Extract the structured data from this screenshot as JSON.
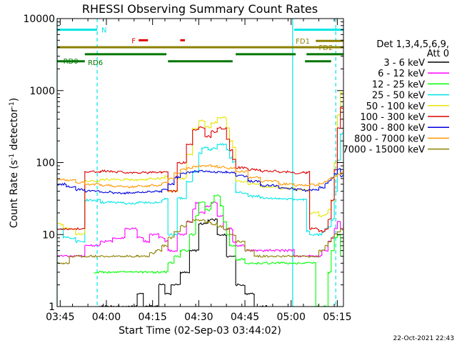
{
  "chart_data": {
    "type": "line",
    "title": "RHESSI Observing Summary Count Rates",
    "xlabel": "Start Time (02-Sep-03 03:44:02)",
    "ylabel": "Count Rate (s",
    "ylabel_sup1": "-1",
    "ylabel_mid": " detector",
    "ylabel_sup2": "-1",
    "ylabel_end": ")",
    "yscale": "log",
    "ylim": [
      1,
      10000
    ],
    "xlim_minutes": [
      0,
      93
    ],
    "x_ticks": [
      {
        "label": "03:45",
        "minute": 1
      },
      {
        "label": "04:00",
        "minute": 16
      },
      {
        "label": "04:15",
        "minute": 31
      },
      {
        "label": "04:30",
        "minute": 46
      },
      {
        "label": "04:45",
        "minute": 61
      },
      {
        "label": "05:00",
        "minute": 76
      },
      {
        "label": "05:15",
        "minute": 91
      }
    ],
    "y_ticks": [
      {
        "label": "1",
        "value": 1
      },
      {
        "label": "10",
        "value": 10
      },
      {
        "label": "100",
        "value": 100
      },
      {
        "label": "1000",
        "value": 1000
      },
      {
        "label": "10000",
        "value": 10000
      }
    ],
    "legend_header": [
      "Det 1,3,4,5,6,9,",
      "Att 0"
    ],
    "footer_date": "22-Oct-2021 22:43",
    "series": [
      {
        "name": "3 - 6 keV",
        "color": "#000000",
        "x": [
          13,
          24,
          26,
          28,
          33,
          35,
          37,
          40,
          43,
          46,
          49,
          52,
          55,
          58,
          61,
          64,
          68
        ],
        "values": [
          1,
          1,
          1.5,
          1,
          2,
          1.5,
          2,
          3,
          6,
          14,
          16,
          10,
          5,
          2,
          1.5,
          1,
          1
        ]
      },
      {
        "name": "6 - 12 keV",
        "color": "#ff00ff",
        "x": [
          0,
          8,
          9,
          14,
          18,
          22,
          26,
          28,
          30,
          33,
          35,
          36,
          39,
          42,
          44,
          45,
          46,
          48,
          50,
          52,
          54,
          57,
          58,
          61,
          65,
          70,
          76,
          77,
          82,
          85,
          86,
          88,
          89,
          90,
          91,
          92,
          93
        ],
        "values": [
          5,
          5,
          7,
          8,
          9,
          12,
          9,
          8,
          10,
          9,
          8,
          6,
          10,
          15,
          22,
          28,
          20,
          25,
          28,
          18,
          12,
          8,
          7,
          6,
          6,
          6,
          6,
          5,
          5,
          5,
          6,
          8,
          9,
          12,
          15,
          12,
          14
        ]
      },
      {
        "name": "12 - 25 keV",
        "color": "#00ff00",
        "x": [
          12,
          20,
          24,
          35,
          36,
          38,
          40,
          43,
          45,
          46,
          48,
          50,
          51,
          53,
          54,
          55,
          56,
          58,
          61,
          65,
          72,
          80,
          83,
          84,
          86,
          88,
          89,
          90,
          91,
          92
        ],
        "values": [
          3,
          3,
          3,
          3,
          4,
          5,
          6,
          10,
          18,
          28,
          22,
          28,
          35,
          25,
          15,
          10,
          7,
          4.5,
          4,
          4,
          4,
          4,
          4,
          1,
          1,
          3,
          6,
          9,
          10,
          5
        ]
      },
      {
        "name": "25 - 50 keV",
        "color": "#00e5e5",
        "x": [
          0,
          2,
          6,
          8,
          9,
          14,
          18,
          22,
          26,
          34,
          35,
          36,
          39,
          42,
          44,
          46,
          47,
          48,
          49,
          50,
          52,
          55,
          56,
          57,
          58,
          62,
          66,
          72,
          77,
          80,
          81,
          82,
          85,
          86,
          87,
          88,
          89,
          90,
          91,
          92,
          93
        ],
        "values": [
          12,
          9,
          8,
          8,
          30,
          28,
          28,
          27,
          28,
          30,
          32,
          10,
          32,
          55,
          75,
          135,
          160,
          165,
          150,
          155,
          180,
          150,
          115,
          100,
          38,
          34,
          32,
          31,
          31,
          30,
          11,
          10,
          10,
          11,
          12,
          13,
          16,
          40,
          110,
          250,
          140
        ]
      },
      {
        "name": "50 - 100 keV",
        "color": "#e5e500",
        "x": [
          0,
          2,
          6,
          8,
          9,
          14,
          18,
          22,
          26,
          30,
          34,
          35,
          36,
          39,
          42,
          44,
          46,
          48,
          50,
          52,
          55,
          56,
          57,
          58,
          62,
          66,
          72,
          77,
          80,
          81,
          82,
          85,
          86,
          87,
          88,
          89,
          90,
          91,
          92,
          93
        ],
        "values": [
          14,
          12,
          10,
          10,
          55,
          58,
          58,
          58,
          58,
          60,
          62,
          65,
          40,
          60,
          130,
          300,
          380,
          310,
          360,
          420,
          300,
          200,
          160,
          55,
          50,
          46,
          44,
          42,
          42,
          41,
          20,
          18,
          18,
          19,
          22,
          30,
          100,
          450,
          950,
          500
        ]
      },
      {
        "name": "100 - 300 keV",
        "color": "#dd0000",
        "x": [
          0,
          6,
          8,
          9,
          14,
          18,
          22,
          26,
          30,
          34,
          35,
          36,
          39,
          42,
          44,
          46,
          48,
          50,
          52,
          55,
          56,
          57,
          58,
          62,
          66,
          72,
          77,
          80,
          81,
          82,
          85,
          86,
          87,
          88,
          89,
          90,
          91,
          92,
          93
        ],
        "values": [
          12,
          12,
          12,
          75,
          76,
          74,
          72,
          72,
          73,
          74,
          75,
          40,
          100,
          180,
          280,
          310,
          230,
          270,
          300,
          210,
          150,
          110,
          85,
          80,
          76,
          74,
          72,
          73,
          74,
          12,
          11,
          11,
          12,
          16,
          30,
          80,
          300,
          580,
          150
        ]
      },
      {
        "name": "300 - 800 keV",
        "color": "#0000dd",
        "x": [
          0,
          3,
          6,
          9,
          14,
          18,
          22,
          26,
          30,
          34,
          36,
          38,
          40,
          42,
          44,
          46,
          48,
          50,
          52,
          55,
          58,
          62,
          66,
          72,
          77,
          80,
          82,
          85,
          87,
          88,
          89,
          90,
          91,
          92,
          93
        ],
        "values": [
          50,
          46,
          42,
          40,
          39,
          38,
          38,
          39,
          40,
          42,
          50,
          62,
          70,
          73,
          75,
          76,
          75,
          74,
          74,
          72,
          65,
          55,
          48,
          44,
          42,
          41,
          42,
          45,
          50,
          55,
          62,
          70,
          80,
          65,
          58
        ]
      },
      {
        "name": "800 - 7000 keV",
        "color": "#ff9900",
        "x": [
          0,
          3,
          6,
          9,
          14,
          18,
          22,
          26,
          30,
          34,
          36,
          38,
          40,
          42,
          44,
          46,
          48,
          50,
          52,
          55,
          58,
          62,
          66,
          72,
          77,
          80,
          82,
          85,
          87,
          88,
          89,
          90,
          91,
          92,
          93
        ],
        "values": [
          58,
          56,
          53,
          50,
          48,
          47,
          46,
          47,
          48,
          52,
          60,
          72,
          80,
          85,
          88,
          90,
          90,
          88,
          86,
          84,
          75,
          62,
          55,
          50,
          48,
          48,
          49,
          52,
          55,
          58,
          62,
          65,
          68,
          72,
          75
        ]
      },
      {
        "name": "7000 - 15000 keV",
        "color": "#8b8000",
        "x": [
          0,
          2,
          4,
          7,
          9,
          14,
          18,
          22,
          26,
          30,
          32,
          34,
          36,
          38,
          40,
          42,
          44,
          46,
          48,
          50,
          52,
          54,
          56,
          58,
          61,
          64,
          70,
          76,
          80,
          83,
          85,
          87,
          88,
          89,
          90,
          91,
          92,
          93
        ],
        "values": [
          4,
          4,
          5,
          5,
          5,
          5,
          5,
          5,
          5,
          5.5,
          6,
          7,
          9,
          11,
          13,
          15,
          16,
          16,
          15,
          14,
          13,
          12,
          10,
          8,
          6,
          5,
          5,
          5,
          5,
          5,
          6,
          7,
          8,
          9,
          10,
          11,
          12,
          13
        ]
      }
    ],
    "bars": [
      {
        "label": "N",
        "color": "#00e5e5",
        "y_value": 7000,
        "segments": [
          [
            0,
            13
          ],
          [
            77,
            93
          ]
        ]
      },
      {
        "label": "F",
        "color": "#dd0000",
        "y_value": 5000,
        "segments": [
          [
            26.5,
            29.5
          ],
          [
            40,
            41.5
          ]
        ]
      },
      {
        "label": "FD1",
        "color": "#8b8000",
        "y_value": 4000,
        "segments": [
          [
            0,
            93
          ]
        ]
      },
      {
        "label": "FD2",
        "color": "#8b8000",
        "y_value": 4900,
        "segments": [
          [
            84,
            93
          ]
        ]
      },
      {
        "label": "RD0",
        "color": "#007700",
        "y_value": 3200,
        "segments": [
          [
            9,
            35.5
          ],
          [
            58,
            77.5
          ],
          [
            81,
            93
          ]
        ]
      },
      {
        "label": "RD6",
        "color": "#007700",
        "y_value": 2550,
        "segments": [
          [
            0,
            9
          ],
          [
            36,
            57
          ],
          [
            80.5,
            89
          ]
        ]
      }
    ],
    "vertical_lines": [
      {
        "minute": 0,
        "style": "solid"
      },
      {
        "minute": 13,
        "style": "dashed"
      },
      {
        "minute": 76.5,
        "style": "solid"
      },
      {
        "minute": 90.5,
        "style": "dashed"
      }
    ]
  }
}
